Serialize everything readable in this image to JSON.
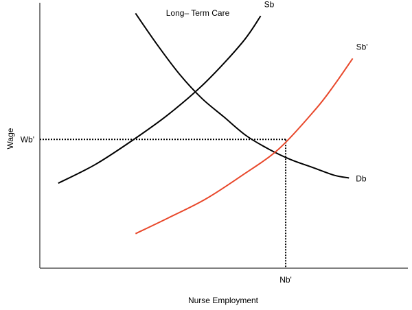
{
  "chart_data": {
    "type": "line",
    "title": "Long– Term Care",
    "xlabel": "Nurse Employment",
    "ylabel": "Wage",
    "xlim": [
      0,
      100
    ],
    "ylim": [
      0,
      100
    ],
    "grid": false,
    "series": [
      {
        "name": "Sb",
        "color": "#000000",
        "x": [
          5,
          15,
          25,
          35,
          45,
          55,
          60
        ],
        "y": [
          32,
          39,
          48,
          58,
          70,
          85,
          95
        ]
      },
      {
        "name": "Db",
        "color": "#000000",
        "x": [
          26,
          32,
          38,
          44,
          50,
          56,
          62,
          68,
          74,
          80,
          84
        ],
        "y": [
          96,
          84,
          73,
          64,
          57,
          50,
          45,
          41,
          38,
          35,
          34
        ]
      },
      {
        "name": "Sb'",
        "color": "#e8472a",
        "x": [
          26,
          35,
          45,
          55,
          65,
          75,
          80,
          85
        ],
        "y": [
          13,
          19,
          26,
          35,
          45,
          60,
          69,
          79
        ]
      }
    ],
    "equilibrium": {
      "x": 66.8,
      "y": 48.5,
      "x_label": "Nb'",
      "y_label": "Wb'"
    }
  }
}
